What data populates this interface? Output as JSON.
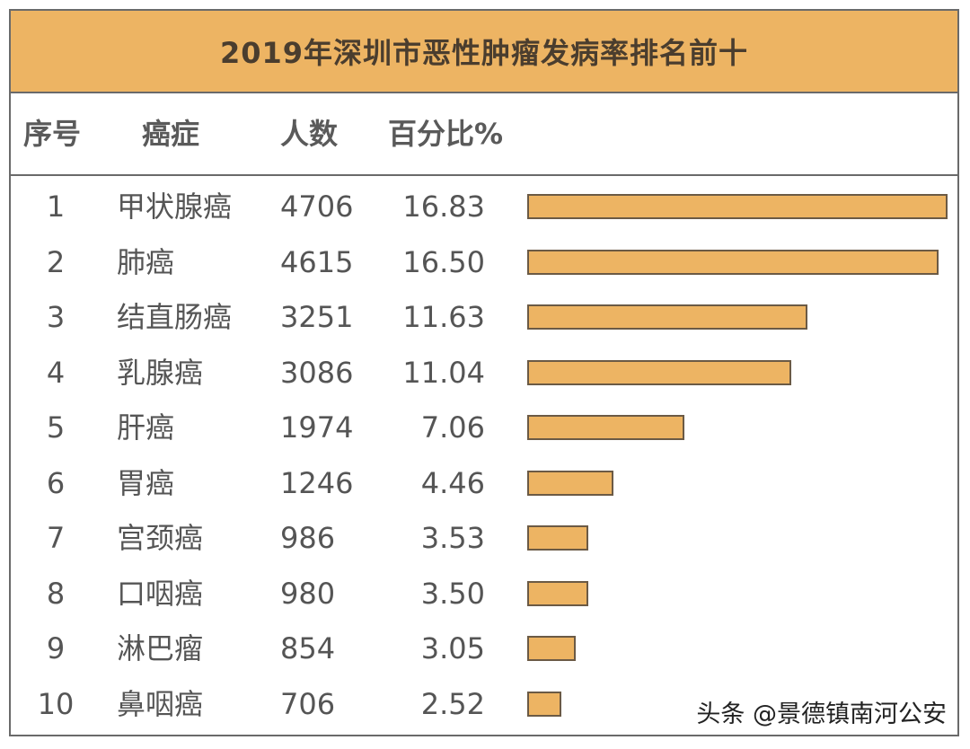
{
  "chart_data": {
    "type": "bar",
    "orientation": "horizontal",
    "title": "2019年深圳市恶性肿瘤发病率排名前十",
    "columns": [
      "序号",
      "癌症",
      "人数",
      "百分比%"
    ],
    "rows": [
      {
        "rank": "1",
        "name": "甲状腺癌",
        "count": "4706",
        "percent": "16.83",
        "value": 16.83
      },
      {
        "rank": "2",
        "name": "肺癌",
        "count": "4615",
        "percent": "16.50",
        "value": 16.5
      },
      {
        "rank": "3",
        "name": "结直肠癌",
        "count": "3251",
        "percent": "11.63",
        "value": 11.63
      },
      {
        "rank": "4",
        "name": "乳腺癌",
        "count": "3086",
        "percent": "11.04",
        "value": 11.04
      },
      {
        "rank": "5",
        "name": "肝癌",
        "count": "1974",
        "percent": "7.06",
        "value": 7.06
      },
      {
        "rank": "6",
        "name": "胃癌",
        "count": "1246",
        "percent": "4.46",
        "value": 4.46
      },
      {
        "rank": "7",
        "name": "宫颈癌",
        "count": "986",
        "percent": "3.53",
        "value": 3.53
      },
      {
        "rank": "8",
        "name": "口咽癌",
        "count": "980",
        "percent": "3.50",
        "value": 3.5
      },
      {
        "rank": "9",
        "name": "淋巴瘤",
        "count": "854",
        "percent": "3.05",
        "value": 3.05
      },
      {
        "rank": "10",
        "name": "鼻咽癌",
        "count": "706",
        "percent": "2.52",
        "value": 2.52
      }
    ],
    "grid": false,
    "colors": {
      "bar": "#EDB463",
      "bar_border": "#6b5a45",
      "title_band": "#EDB463"
    }
  },
  "watermark": "头条 @景德镇南河公安"
}
